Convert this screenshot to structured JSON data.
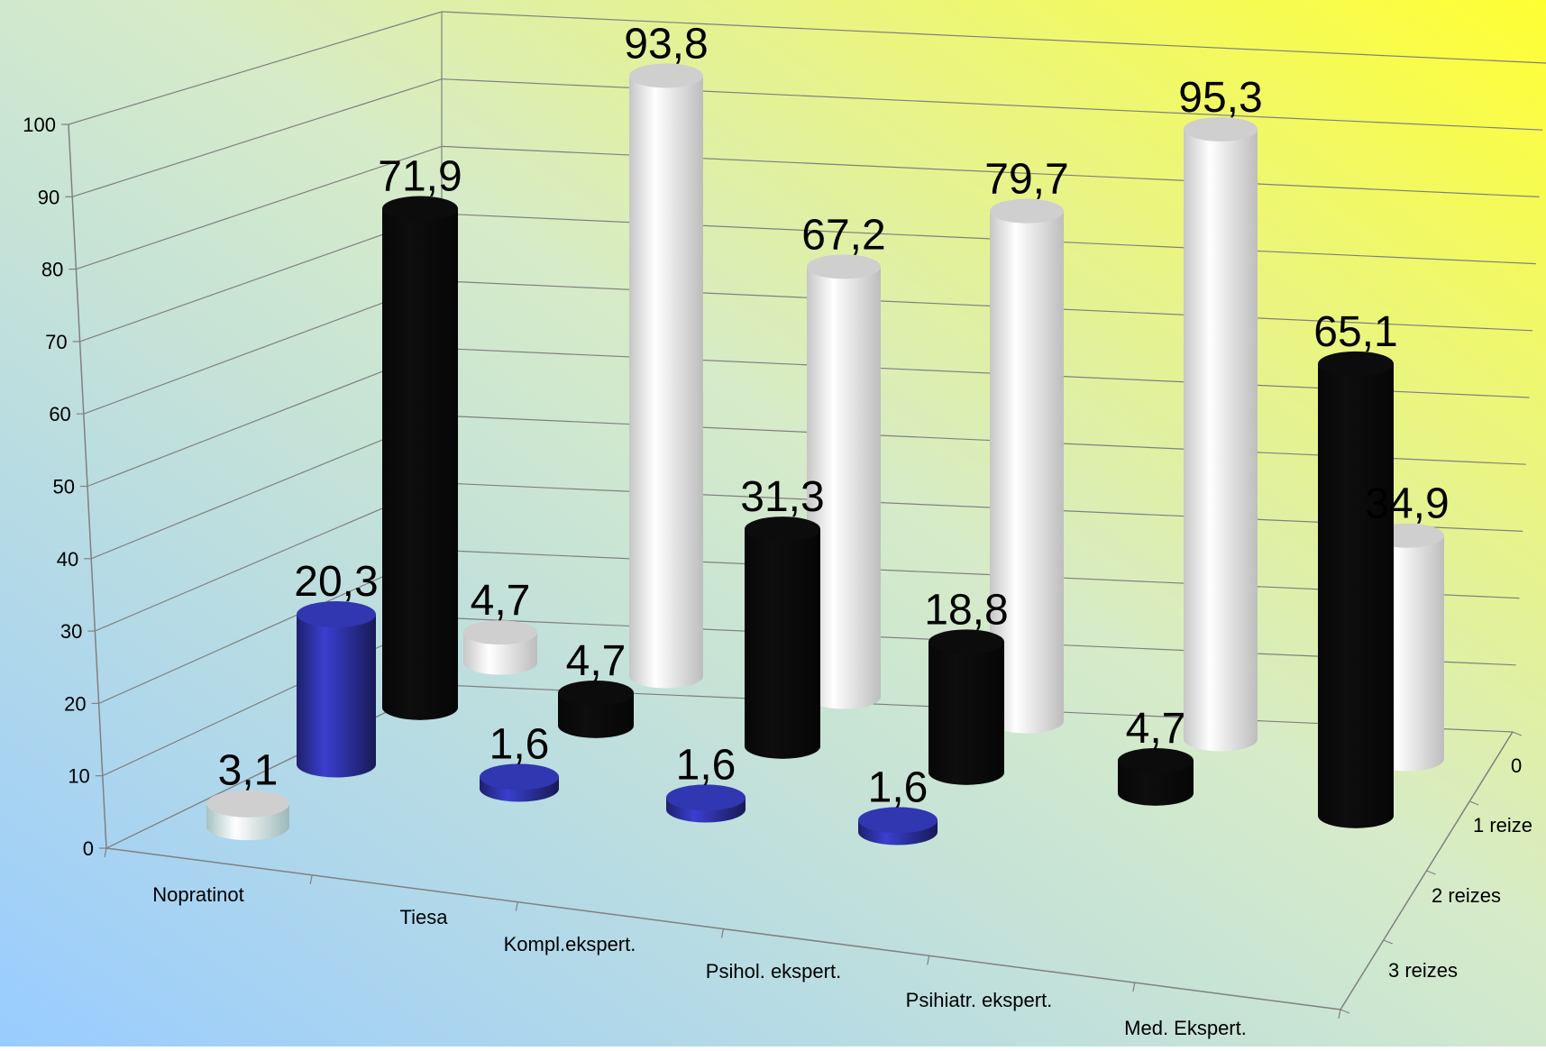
{
  "chart_data": {
    "type": "bar",
    "subtype": "3d-cylinder",
    "title": "",
    "categories": [
      "Nopratinot",
      "Tiesa",
      "Kompl.ekspert.",
      "Psihol. ekspert.",
      "Psihiatr. ekspert.",
      "Med. Ekspert."
    ],
    "depth_labels": [
      "0",
      "1 reize",
      "2 reizes",
      "3 reizes"
    ],
    "ylim": [
      0,
      100
    ],
    "yticks": [
      "0",
      "10",
      "20",
      "30",
      "40",
      "50",
      "60",
      "70",
      "80",
      "90",
      "100"
    ],
    "grid": true,
    "series": [
      {
        "name": "3 reizes",
        "color": "#c9ecec",
        "values": [
          3.1,
          null,
          null,
          null,
          null,
          null
        ]
      },
      {
        "name": "2 reizes",
        "color": "#2b2f9a",
        "values": [
          20.3,
          1.6,
          1.6,
          1.6,
          null,
          null
        ]
      },
      {
        "name": "1 reize",
        "color": "#0a0a0a",
        "values": [
          71.9,
          4.7,
          31.3,
          18.8,
          4.7,
          65.1
        ]
      },
      {
        "name": "0",
        "color": "#f2f2f2",
        "values": [
          4.7,
          93.8,
          67.2,
          79.7,
          95.3,
          34.9
        ]
      }
    ],
    "value_labels": [
      [
        "3,1",
        "",
        "",
        "",
        "",
        ""
      ],
      [
        "20,3",
        "1,6",
        "1,6",
        "1,6",
        "",
        ""
      ],
      [
        "71,9",
        "4,7",
        "31,3",
        "18,8",
        "4,7",
        "65,1"
      ],
      [
        "4,7",
        "93,8",
        "67,2",
        "79,7",
        "95,3",
        "34,9"
      ]
    ]
  },
  "colors": {
    "background_top_right": "#ffff33",
    "background_bottom_left": "#99ccff",
    "grid": "#808080",
    "text": "#000000"
  }
}
